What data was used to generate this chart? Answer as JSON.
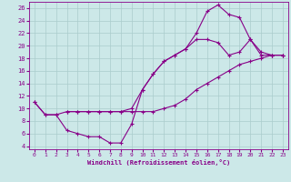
{
  "bg_color": "#cce8e8",
  "grid_color": "#aacccc",
  "line_color": "#880088",
  "xlabel": "Windchill (Refroidissement éolien,°C)",
  "xlim": [
    -0.5,
    23.5
  ],
  "ylim": [
    3.5,
    27
  ],
  "yticks": [
    4,
    6,
    8,
    10,
    12,
    14,
    16,
    18,
    20,
    22,
    24,
    26
  ],
  "xticks": [
    0,
    1,
    2,
    3,
    4,
    5,
    6,
    7,
    8,
    9,
    10,
    11,
    12,
    13,
    14,
    15,
    16,
    17,
    18,
    19,
    20,
    21,
    22,
    23
  ],
  "curve1_x": [
    0,
    1,
    2,
    3,
    4,
    5,
    6,
    7,
    8,
    9,
    10,
    11,
    12,
    13,
    14,
    15,
    16,
    17,
    18,
    19,
    20,
    21,
    22,
    23
  ],
  "curve1_y": [
    11,
    9,
    9,
    9.5,
    9.5,
    9.5,
    9.5,
    9.5,
    9.5,
    9.5,
    9.5,
    9.5,
    10,
    10.5,
    11.5,
    13,
    14,
    15,
    16,
    17,
    17.5,
    18,
    18.5,
    18.5
  ],
  "curve2_x": [
    0,
    1,
    2,
    3,
    4,
    5,
    6,
    7,
    8,
    9,
    10,
    11,
    12,
    13,
    14,
    15,
    16,
    17,
    18,
    19,
    20,
    21,
    22,
    23
  ],
  "curve2_y": [
    11,
    9,
    9,
    6.5,
    6,
    5.5,
    5.5,
    4.5,
    4.5,
    7.5,
    13,
    15.5,
    17.5,
    18.5,
    19.5,
    22,
    25.5,
    26.5,
    25,
    24.5,
    21,
    18.5,
    18.5,
    18.5
  ],
  "curve3_x": [
    3,
    4,
    5,
    6,
    7,
    8,
    9,
    10,
    11,
    12,
    13,
    14,
    15,
    16,
    17,
    18,
    19,
    20,
    21,
    22,
    23
  ],
  "curve3_y": [
    9.5,
    9.5,
    9.5,
    9.5,
    9.5,
    9.5,
    10,
    13,
    15.5,
    17.5,
    18.5,
    19.5,
    21,
    21,
    20.5,
    18.5,
    19,
    21,
    19,
    18.5,
    18.5
  ]
}
